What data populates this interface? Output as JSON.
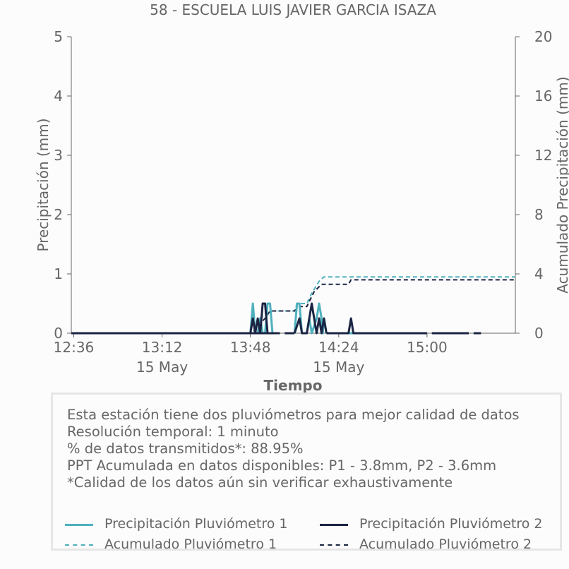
{
  "chart_data": {
    "type": "line",
    "title": "58 - ESCUELA LUIS JAVIER GARCIA ISAZA",
    "xlabel": "Tiempo",
    "ylabel": "Precipitación (mm)",
    "y2label": "Acumulado Precipitación (mm)",
    "x_ticks": [
      {
        "time": "12:36",
        "date": ""
      },
      {
        "time": "13:12",
        "date": "15 May"
      },
      {
        "time": "13:48",
        "date": ""
      },
      {
        "time": "14:24",
        "date": "15 May"
      },
      {
        "time": "15:00",
        "date": ""
      }
    ],
    "xlim": [
      "12:35",
      "15:36"
    ],
    "ylim": [
      0,
      5
    ],
    "y_ticks": [
      0,
      1,
      2,
      3,
      4,
      5
    ],
    "y2lim": [
      0,
      20
    ],
    "y2_ticks": [
      0,
      4,
      8,
      12,
      16,
      20
    ],
    "series": [
      {
        "name": "Precipitación Pluviómetro 1",
        "axis": "left",
        "color": "#4fb0bd",
        "style": "solid",
        "segments": [
          [
            [
              "12:35",
              0
            ],
            [
              "13:59",
              0
            ]
          ],
          [
            [
              "13:48",
              0
            ],
            [
              "13:49",
              0.5
            ],
            [
              "13:50",
              0
            ],
            [
              "13:51",
              0
            ],
            [
              "13:52",
              0.25
            ],
            [
              "13:53",
              0
            ],
            [
              "13:54",
              0
            ],
            [
              "13:55",
              0.5
            ],
            [
              "13:56",
              0.5
            ],
            [
              "13:57",
              0
            ]
          ],
          [
            [
              "13:59",
              0
            ],
            [
              "14:00",
              0
            ]
          ],
          [
            [
              "14:02",
              0
            ],
            [
              "14:06",
              0
            ]
          ],
          [
            [
              "14:06",
              0
            ],
            [
              "14:07",
              0.5
            ],
            [
              "14:08",
              0.5
            ],
            [
              "14:09",
              0
            ],
            [
              "14:11",
              0
            ],
            [
              "14:12",
              0.25
            ],
            [
              "14:13",
              0
            ],
            [
              "14:15",
              0.25
            ],
            [
              "14:16",
              0.5
            ],
            [
              "14:17",
              0.25
            ],
            [
              "14:17.5",
              0
            ],
            [
              "14:18",
              0.25
            ],
            [
              "14:19",
              0
            ]
          ],
          [
            [
              "14:19",
              0
            ],
            [
              "15:00",
              0
            ]
          ],
          [
            [
              "15:02",
              0
            ],
            [
              "15:17",
              0
            ]
          ],
          [
            [
              "15:19",
              0
            ],
            [
              "15:22",
              0
            ]
          ]
        ]
      },
      {
        "name": "Precipitación Pluviómetro 2",
        "axis": "left",
        "color": "#1b2443",
        "style": "solid",
        "segments": [
          [
            [
              "12:35",
              0
            ],
            [
              "13:59",
              0
            ]
          ],
          [
            [
              "13:48",
              0
            ],
            [
              "13:49",
              0.25
            ],
            [
              "13:50",
              0
            ],
            [
              "13:51",
              0.25
            ],
            [
              "13:52",
              0
            ],
            [
              "13:53",
              0.5
            ],
            [
              "13:54",
              0.5
            ],
            [
              "13:55",
              0
            ]
          ],
          [
            [
              "13:59",
              0
            ],
            [
              "14:00",
              0
            ]
          ],
          [
            [
              "14:02",
              0
            ],
            [
              "14:06",
              0
            ]
          ],
          [
            [
              "14:06",
              0
            ],
            [
              "14:08",
              0.25
            ],
            [
              "14:09",
              0
            ],
            [
              "14:11",
              0
            ],
            [
              "14:13",
              0.5
            ],
            [
              "14:14",
              0.25
            ],
            [
              "14:15",
              0
            ],
            [
              "14:16",
              0.25
            ],
            [
              "14:17",
              0
            ],
            [
              "14:18",
              0.25
            ],
            [
              "14:19",
              0
            ]
          ],
          [
            [
              "14:19",
              0
            ],
            [
              "14:28",
              0
            ],
            [
              "14:29",
              0.25
            ],
            [
              "14:30",
              0
            ],
            [
              "15:00",
              0
            ]
          ],
          [
            [
              "15:02",
              0
            ],
            [
              "15:17",
              0
            ]
          ],
          [
            [
              "15:19",
              0
            ],
            [
              "15:22",
              0
            ]
          ]
        ]
      },
      {
        "name": "Acumulado Pluviómetro 1",
        "axis": "right",
        "color": "#4fb0bd",
        "style": "dashed",
        "segments": [
          [
            [
              "12:35",
              0
            ],
            [
              "13:49",
              0
            ],
            [
              "13:52",
              1
            ],
            [
              "13:55",
              1.5
            ],
            [
              "14:06",
              1.5
            ],
            [
              "14:07",
              2.0
            ],
            [
              "14:11",
              2.0
            ],
            [
              "14:13",
              2.7
            ],
            [
              "14:16",
              3.5
            ],
            [
              "14:18",
              3.8
            ],
            [
              "15:36",
              3.8
            ]
          ]
        ]
      },
      {
        "name": "Acumulado Pluviómetro 2",
        "axis": "right",
        "color": "#1b2443",
        "style": "dashed",
        "segments": [
          [
            [
              "12:35",
              0
            ],
            [
              "13:49",
              0
            ],
            [
              "13:51",
              0.5
            ],
            [
              "13:54",
              1.0
            ],
            [
              "13:56",
              1.5
            ],
            [
              "14:06",
              1.5
            ],
            [
              "14:08",
              1.8
            ],
            [
              "14:11",
              1.8
            ],
            [
              "14:14",
              2.8
            ],
            [
              "14:17",
              3.3
            ],
            [
              "14:28",
              3.3
            ],
            [
              "14:29",
              3.6
            ],
            [
              "15:36",
              3.6
            ]
          ]
        ]
      }
    ],
    "legend_position": "bottom"
  },
  "info": {
    "line1": "Esta estación tiene dos pluviómetros para mejor calidad de datos",
    "line2": "Resolución temporal: 1 minuto",
    "line3": "% de datos transmitidos*: 88.95%",
    "line4": "PPT Acumulada en datos disponibles: P1 - 3.8mm, P2 - 3.6mm",
    "line5": "*Calidad de los datos aún sin verificar exhaustivamente"
  },
  "legend": {
    "p1": "Precipitación Pluviómetro 1",
    "p2": "Precipitación Pluviómetro 2",
    "a1": "Acumulado Pluviómetro 1",
    "a2": "Acumulado Pluviómetro 2"
  },
  "colors": {
    "teal": "#4fb0bd",
    "navy": "#1b2443",
    "text": "#666666"
  }
}
